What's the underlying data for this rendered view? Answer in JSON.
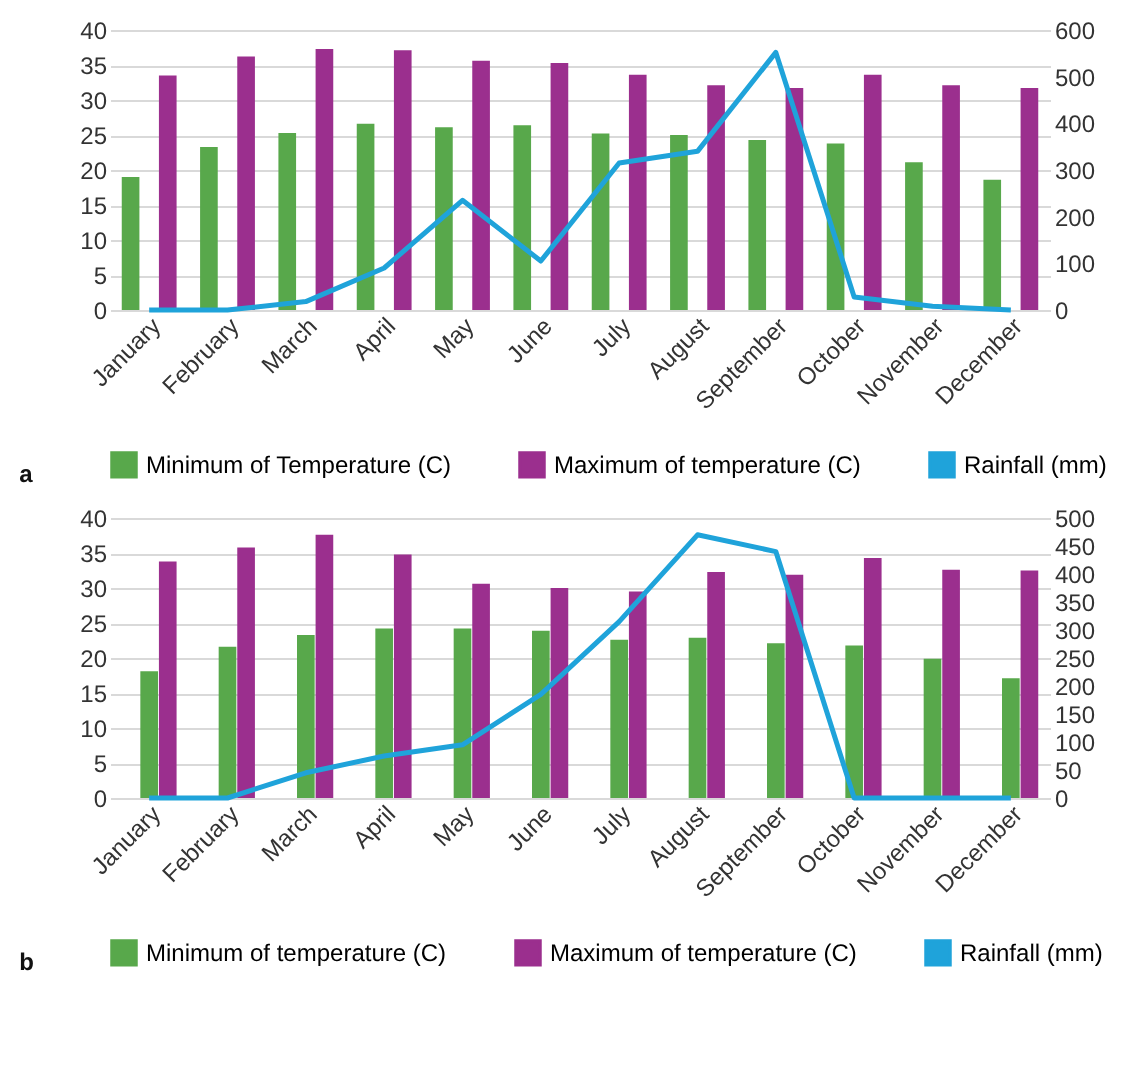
{
  "chart_data": [
    {
      "type": "bar",
      "categories": [
        "January",
        "February",
        "March",
        "April",
        "May",
        "June",
        "July",
        "August",
        "September",
        "October",
        "November",
        "December"
      ],
      "series": [
        {
          "name": "Minimum of Temperature (C)",
          "color": "#58a84b",
          "values": [
            19,
            23.3,
            25.3,
            26.6,
            26.1,
            26.4,
            25.2,
            25,
            24.3,
            23.8,
            21.1,
            18.6
          ]
        },
        {
          "name": "Maximum of temperature (C)",
          "color": "#9b2f8e",
          "values": [
            33.5,
            36.2,
            37.3,
            37.1,
            35.6,
            35.3,
            33.6,
            32.1,
            31.7,
            33.6,
            32.1,
            31.7
          ]
        },
        {
          "name": "Rainfall (mm)",
          "color": "#1fa3da",
          "type": "line",
          "axis": "y2",
          "values": [
            0,
            0,
            18,
            90,
            235,
            105,
            315,
            340,
            552,
            28,
            8,
            0
          ]
        }
      ],
      "ylim": [
        0,
        40
      ],
      "yticks": [
        0,
        5,
        10,
        15,
        20,
        25,
        30,
        35,
        40
      ],
      "y2lim": [
        0,
        600
      ],
      "y2ticks": [
        0,
        100,
        200,
        300,
        400,
        500,
        600
      ],
      "grid": "y",
      "legend": "bottom",
      "annotations": [
        "a"
      ]
    },
    {
      "type": "bar",
      "categories": [
        "January",
        "February",
        "March",
        "April",
        "May",
        "June",
        "July",
        "August",
        "September",
        "October",
        "November",
        "December"
      ],
      "series": [
        {
          "name": "Minimum of temperature (C)",
          "color": "#58a84b",
          "values": [
            18.1,
            21.6,
            23.3,
            24.2,
            24.2,
            23.9,
            22.6,
            22.9,
            22.1,
            21.8,
            19.9,
            17.1
          ]
        },
        {
          "name": "Maximum of temperature (C)",
          "color": "#9b2f8e",
          "values": [
            33.8,
            35.8,
            37.6,
            34.8,
            30.6,
            30.0,
            29.5,
            32.3,
            31.9,
            34.3,
            32.6,
            32.5
          ]
        },
        {
          "name": "Rainfall (mm)",
          "color": "#1fa3da",
          "type": "line",
          "axis": "y2",
          "values": [
            0,
            0,
            45,
            75,
            95,
            185,
            315,
            470,
            440,
            0,
            0,
            0
          ]
        }
      ],
      "ylim": [
        0,
        40
      ],
      "yticks": [
        0,
        5,
        10,
        15,
        20,
        25,
        30,
        35,
        40
      ],
      "y2lim": [
        0,
        500
      ],
      "y2ticks": [
        0,
        50,
        100,
        150,
        200,
        250,
        300,
        350,
        400,
        450,
        500
      ],
      "grid": "y",
      "legend": "bottom",
      "annotations": [
        "b"
      ]
    }
  ]
}
